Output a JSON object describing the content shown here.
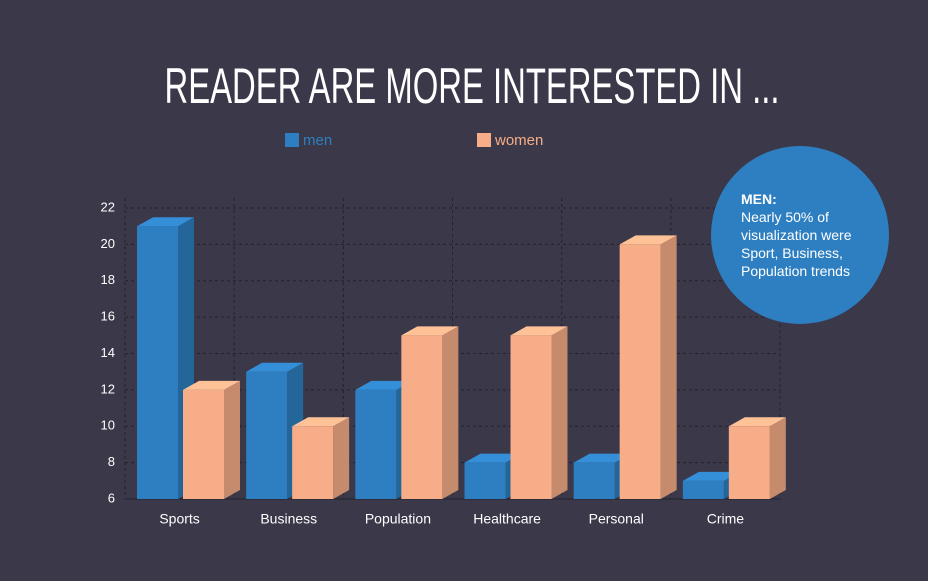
{
  "chart_data": {
    "type": "bar3d",
    "title": "READER ARE MORE INTERESTED IN ...",
    "categories": [
      "Sports",
      "Business",
      "Population",
      "Healthcare",
      "Personal",
      "Crime"
    ],
    "series": [
      {
        "name": "men",
        "color": "#2e7fc1",
        "values": [
          21,
          13,
          12,
          8,
          8,
          7
        ]
      },
      {
        "name": "women",
        "color": "#f7ad87",
        "values": [
          12,
          10,
          15,
          15,
          20,
          10
        ]
      }
    ],
    "ylim": [
      6,
      22
    ],
    "yticks": [
      6,
      8,
      10,
      12,
      14,
      16,
      18,
      20,
      22
    ],
    "grid": true,
    "annotation": {
      "title": "MEN:",
      "text": "Nearly 50% of visualization were Sport, Business, Population trends"
    }
  }
}
